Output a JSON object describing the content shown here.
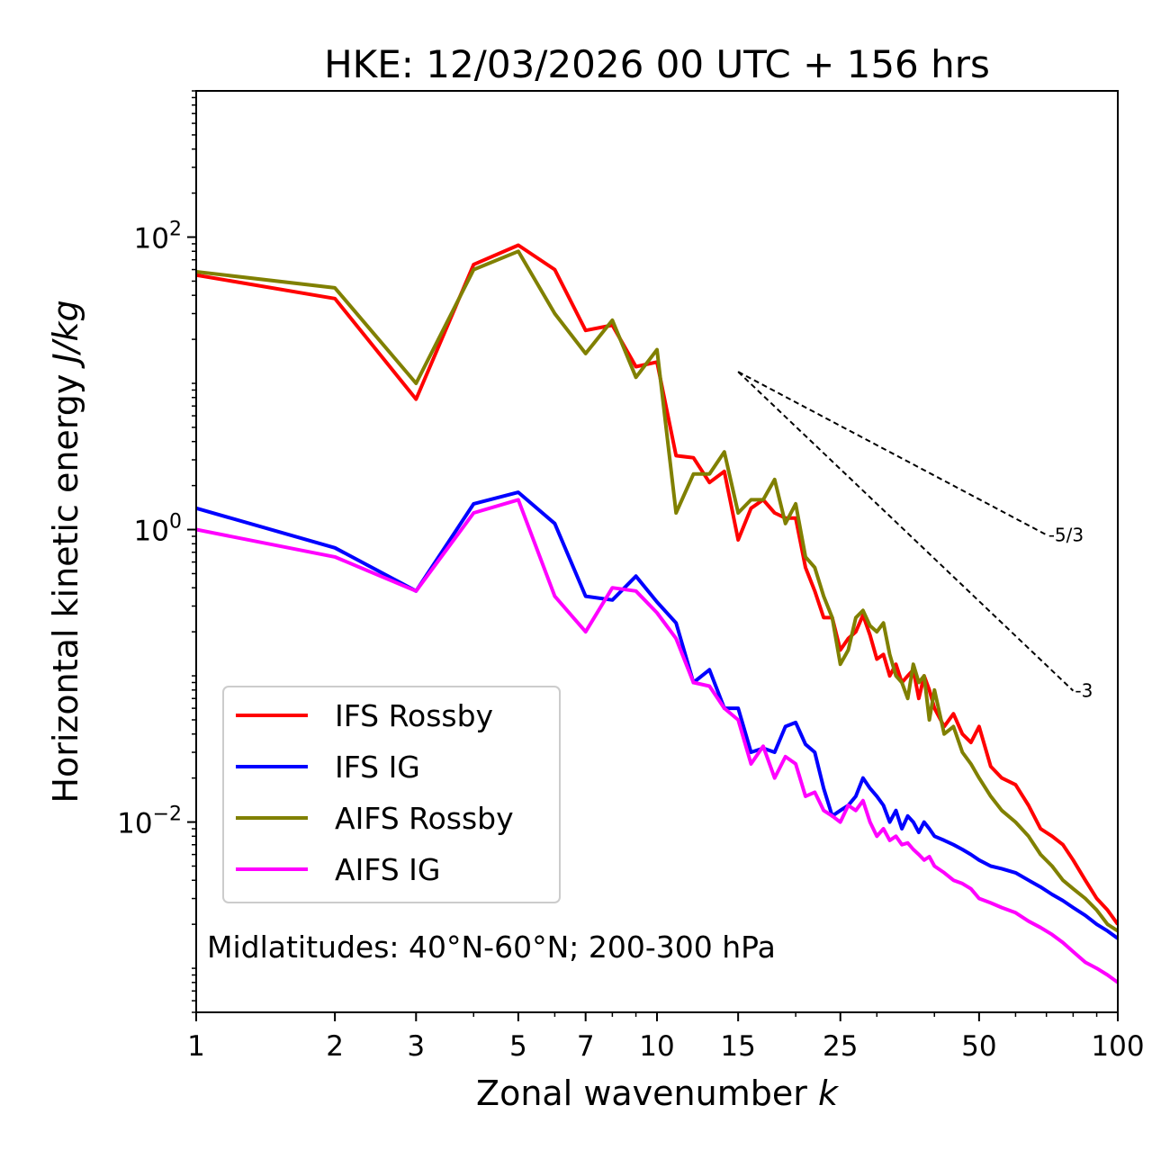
{
  "chart_data": {
    "type": "line",
    "title": "HKE: 12/03/2026 00 UTC + 156 hrs",
    "xlabel": "Zonal wavenumber",
    "xlabel_var": "k",
    "ylabel": "Horizontal kinetic energy",
    "ylabel_unit": "J/kg",
    "xscale": "log",
    "yscale": "log",
    "xlim": [
      1,
      100
    ],
    "ylim": [
      0.0005,
      1000
    ],
    "x_ticks": [
      1,
      2,
      3,
      5,
      7,
      10,
      15,
      25,
      50,
      100
    ],
    "x_tick_labels": [
      "1",
      "2",
      "3",
      "5",
      "7",
      "10",
      "15",
      "25",
      "50",
      "100"
    ],
    "y_ticks": [
      0.01,
      1,
      100
    ],
    "y_tick_base": "10",
    "y_tick_exponents": [
      "−2",
      "0",
      "2"
    ],
    "annotation": "Midlatitudes: 40°N-60°N; 200-300 hPa",
    "legend_position": "lower-left",
    "reference_lines": [
      {
        "label": "-5/3",
        "slope": -1.6667,
        "k_start": 15,
        "k_end": 70,
        "E_start": 12
      },
      {
        "label": "-3",
        "slope": -3,
        "k_start": 15,
        "k_end": 80,
        "E_start": 12
      }
    ],
    "series": [
      {
        "name": "IFS Rossby",
        "color": "#ff0000",
        "x": [
          1,
          2,
          3,
          4,
          5,
          6,
          7,
          8,
          9,
          10,
          11,
          12,
          13,
          14,
          15,
          16,
          17,
          18,
          19,
          20,
          21,
          22,
          23,
          24,
          25,
          26,
          27,
          28,
          29,
          30,
          31,
          32,
          33,
          34,
          35,
          36,
          37,
          38,
          39,
          40,
          42,
          44,
          46,
          48,
          50,
          53,
          56,
          60,
          64,
          68,
          72,
          76,
          80,
          85,
          90,
          95,
          100
        ],
        "values": [
          55,
          38,
          7.8,
          65,
          88,
          60,
          23,
          25,
          13,
          14,
          3.2,
          3.1,
          2.1,
          2.5,
          0.85,
          1.4,
          1.6,
          1.3,
          1.2,
          1.2,
          0.55,
          0.38,
          0.25,
          0.25,
          0.15,
          0.18,
          0.2,
          0.26,
          0.19,
          0.13,
          0.14,
          0.1,
          0.12,
          0.09,
          0.1,
          0.11,
          0.07,
          0.1,
          0.08,
          0.06,
          0.045,
          0.055,
          0.04,
          0.035,
          0.045,
          0.024,
          0.02,
          0.018,
          0.013,
          0.009,
          0.008,
          0.007,
          0.0055,
          0.004,
          0.003,
          0.0025,
          0.002
        ]
      },
      {
        "name": "IFS IG",
        "color": "#0000ff",
        "x": [
          1,
          2,
          3,
          4,
          5,
          6,
          7,
          8,
          9,
          10,
          11,
          12,
          13,
          14,
          15,
          16,
          17,
          18,
          19,
          20,
          21,
          22,
          23,
          24,
          25,
          26,
          27,
          28,
          29,
          30,
          31,
          32,
          33,
          34,
          35,
          36,
          37,
          38,
          39,
          40,
          42,
          44,
          46,
          48,
          50,
          53,
          56,
          60,
          64,
          68,
          72,
          76,
          80,
          85,
          90,
          95,
          100
        ],
        "values": [
          1.4,
          0.75,
          0.38,
          1.5,
          1.8,
          1.1,
          0.35,
          0.33,
          0.48,
          0.32,
          0.23,
          0.09,
          0.11,
          0.06,
          0.06,
          0.03,
          0.032,
          0.03,
          0.045,
          0.048,
          0.034,
          0.03,
          0.017,
          0.011,
          0.012,
          0.013,
          0.015,
          0.02,
          0.017,
          0.015,
          0.013,
          0.01,
          0.012,
          0.009,
          0.011,
          0.01,
          0.0085,
          0.01,
          0.009,
          0.008,
          0.0075,
          0.007,
          0.0065,
          0.006,
          0.0055,
          0.005,
          0.0048,
          0.0045,
          0.004,
          0.0036,
          0.0032,
          0.0029,
          0.0026,
          0.0023,
          0.002,
          0.0018,
          0.0016
        ]
      },
      {
        "name": "AIFS Rossby",
        "color": "#808000",
        "x": [
          1,
          2,
          3,
          4,
          5,
          6,
          7,
          8,
          9,
          10,
          11,
          12,
          13,
          14,
          15,
          16,
          17,
          18,
          19,
          20,
          21,
          22,
          23,
          24,
          25,
          26,
          27,
          28,
          29,
          30,
          31,
          32,
          33,
          34,
          35,
          36,
          37,
          38,
          39,
          40,
          42,
          44,
          46,
          48,
          50,
          53,
          56,
          60,
          64,
          68,
          72,
          76,
          80,
          85,
          90,
          95,
          100
        ],
        "values": [
          58,
          45,
          10,
          60,
          80,
          30,
          16,
          27,
          11,
          17,
          1.3,
          2.4,
          2.4,
          3.4,
          1.3,
          1.6,
          1.6,
          2.2,
          1.1,
          1.5,
          0.65,
          0.55,
          0.35,
          0.25,
          0.12,
          0.15,
          0.25,
          0.28,
          0.22,
          0.2,
          0.23,
          0.14,
          0.1,
          0.09,
          0.07,
          0.12,
          0.09,
          0.1,
          0.05,
          0.08,
          0.04,
          0.045,
          0.03,
          0.025,
          0.02,
          0.015,
          0.012,
          0.01,
          0.008,
          0.006,
          0.005,
          0.004,
          0.0035,
          0.003,
          0.0025,
          0.002,
          0.0018
        ]
      },
      {
        "name": "AIFS IG",
        "color": "#ff00ff",
        "x": [
          1,
          2,
          3,
          4,
          5,
          6,
          7,
          8,
          9,
          10,
          11,
          12,
          13,
          14,
          15,
          16,
          17,
          18,
          19,
          20,
          21,
          22,
          23,
          24,
          25,
          26,
          27,
          28,
          29,
          30,
          31,
          32,
          33,
          34,
          35,
          36,
          37,
          38,
          39,
          40,
          42,
          44,
          46,
          48,
          50,
          53,
          56,
          60,
          64,
          68,
          72,
          76,
          80,
          85,
          90,
          95,
          100
        ],
        "values": [
          1.0,
          0.65,
          0.38,
          1.3,
          1.6,
          0.35,
          0.2,
          0.4,
          0.38,
          0.27,
          0.18,
          0.09,
          0.085,
          0.06,
          0.05,
          0.025,
          0.033,
          0.02,
          0.028,
          0.025,
          0.015,
          0.016,
          0.012,
          0.011,
          0.01,
          0.013,
          0.012,
          0.014,
          0.01,
          0.008,
          0.009,
          0.0075,
          0.008,
          0.007,
          0.0072,
          0.0065,
          0.006,
          0.0055,
          0.0058,
          0.005,
          0.0045,
          0.004,
          0.0038,
          0.0035,
          0.003,
          0.0028,
          0.0026,
          0.0024,
          0.0021,
          0.0019,
          0.0017,
          0.0015,
          0.0013,
          0.0011,
          0.001,
          0.0009,
          0.0008
        ]
      }
    ]
  }
}
